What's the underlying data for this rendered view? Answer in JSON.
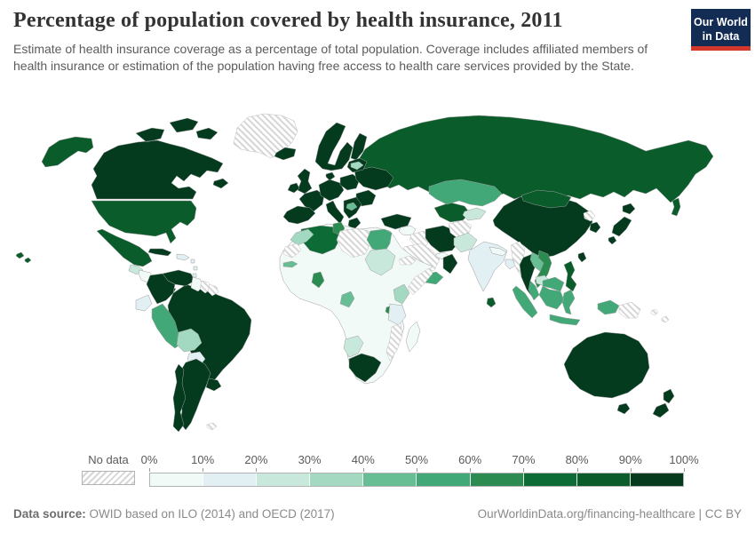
{
  "header": {
    "title": "Percentage of population covered by health insurance, 2011",
    "subtitle": "Estimate of health insurance coverage as a percentage of total population. Coverage includes affiliated members of health insurance or estimation of the population having free access to health care services provided by the State.",
    "logo": {
      "line1": "Our World",
      "line2": "in Data",
      "bg_color": "#132c54",
      "bar_color": "#d4372c"
    }
  },
  "footer": {
    "source_label": "Data source:",
    "source_text": " OWID based on ILO (2014) and OECD (2017)",
    "link_text": "OurWorldinData.org/financing-healthcare | CC BY"
  },
  "chart_data": {
    "type": "heatmap",
    "subtype": "world-choropleth-map",
    "title": "Percentage of population covered by health insurance",
    "year": 2011,
    "unit": "% of total population",
    "legend_position": "bottom",
    "color_scale": {
      "no_data_label": "No data",
      "no_data_pattern": "diagonal-hatch",
      "tick_labels": [
        "0%",
        "10%",
        "20%",
        "30%",
        "40%",
        "50%",
        "60%",
        "70%",
        "80%",
        "90%",
        "100%"
      ],
      "bin_colors": [
        "#f2faf7",
        "#e2eff3",
        "#c9e8dc",
        "#a4d9c1",
        "#67bd94",
        "#43a877",
        "#2b8b50",
        "#0d6b35",
        "#0a5c2b",
        "#043a1d"
      ]
    },
    "regions": {
      "canada": {
        "label": "Canada",
        "value": "90-100%",
        "fill": "#043a1d"
      },
      "alaska": {
        "label": "United States (Alaska)",
        "value": "80-90%",
        "fill": "#0a5c2b"
      },
      "hawaii": {
        "label": "United States (Hawaii)",
        "value": "80-90%",
        "fill": "#0a5c2b"
      },
      "usa": {
        "label": "United States",
        "value": "80-90%",
        "fill": "#0a5c2b"
      },
      "mexico": {
        "label": "Mexico",
        "value": "80-90%",
        "fill": "#0a5c2b"
      },
      "greenland": {
        "label": "Greenland",
        "value": "No data",
        "no_data": true
      },
      "iceland": {
        "label": "Iceland",
        "value": "90-100%",
        "fill": "#043a1d"
      },
      "guatemala": {
        "label": "Guatemala",
        "value": "20-30%",
        "fill": "#c9e8dc"
      },
      "honduras-nicaragua": {
        "label": "Honduras / Nicaragua",
        "value": "0-10%",
        "fill": "#f2faf7"
      },
      "costa-rica": {
        "label": "Costa Rica",
        "value": "50-60%",
        "fill": "#43a877"
      },
      "panama": {
        "label": "Panama",
        "value": "80-90%",
        "fill": "#0a5c2b"
      },
      "cuba": {
        "label": "Cuba",
        "value": "90-100%",
        "fill": "#043a1d"
      },
      "hispaniola": {
        "label": "Hispaniola",
        "value": "10-20%",
        "fill": "#e2eff3"
      },
      "lesser-antilles": {
        "label": "Lesser Antilles",
        "value": "10-20%",
        "fill": "#e2eff3"
      },
      "venezuela": {
        "label": "Venezuela",
        "value": "90-100%",
        "fill": "#043a1d"
      },
      "colombia": {
        "label": "Colombia",
        "value": "90-100%",
        "fill": "#043a1d"
      },
      "guyana": {
        "label": "Guyana",
        "value": "0-10%",
        "fill": "#f2faf7"
      },
      "suriname": {
        "label": "Suriname",
        "value": "No data",
        "no_data": true
      },
      "french-guiana": {
        "label": "French Guiana",
        "value": "No data",
        "no_data": true
      },
      "ecuador": {
        "label": "Ecuador",
        "value": "10-20%",
        "fill": "#e2eff3"
      },
      "peru": {
        "label": "Peru",
        "value": "50-60%",
        "fill": "#43a877"
      },
      "bolivia": {
        "label": "Bolivia",
        "value": "30-40%",
        "fill": "#a4d9c1"
      },
      "paraguay": {
        "label": "Paraguay",
        "value": "10-20%",
        "fill": "#e2eff3"
      },
      "brazil": {
        "label": "Brazil",
        "value": "90-100%",
        "fill": "#043a1d"
      },
      "uruguay": {
        "label": "Uruguay",
        "value": "90-100%",
        "fill": "#043a1d"
      },
      "argentina": {
        "label": "Argentina",
        "value": "90-100%",
        "fill": "#043a1d"
      },
      "chile": {
        "label": "Chile",
        "value": "90-100%",
        "fill": "#043a1d"
      },
      "falklands": {
        "label": "Falkland Islands",
        "value": "No data",
        "no_data": true
      },
      "scandinavia": {
        "label": "Norway / Sweden",
        "value": "90-100%",
        "fill": "#043a1d"
      },
      "finland": {
        "label": "Finland",
        "value": "90-100%",
        "fill": "#043a1d"
      },
      "denmark": {
        "label": "Denmark",
        "value": "90-100%",
        "fill": "#043a1d"
      },
      "uk": {
        "label": "United Kingdom",
        "value": "90-100%",
        "fill": "#043a1d"
      },
      "ireland": {
        "label": "Ireland",
        "value": "90-100%",
        "fill": "#043a1d"
      },
      "iberia": {
        "label": "Spain / Portugal",
        "value": "90-100%",
        "fill": "#043a1d"
      },
      "france": {
        "label": "France",
        "value": "90-100%",
        "fill": "#043a1d"
      },
      "central-europe": {
        "label": "Germany / Central Europe",
        "value": "90-100%",
        "fill": "#043a1d"
      },
      "italy": {
        "label": "Italy",
        "value": "90-100%",
        "fill": "#043a1d"
      },
      "poland": {
        "label": "Poland",
        "value": "90-100%",
        "fill": "#043a1d"
      },
      "balkans": {
        "label": "Balkans",
        "value": "90-100%",
        "fill": "#043a1d"
      },
      "bosnia": {
        "label": "Bosnia and Herzegovina",
        "value": "40-50%",
        "fill": "#67bd94"
      },
      "greece": {
        "label": "Greece",
        "value": "90-100%",
        "fill": "#043a1d"
      },
      "romania-bulgaria": {
        "label": "Romania / Bulgaria",
        "value": "90-100%",
        "fill": "#043a1d"
      },
      "ukraine-belarus": {
        "label": "Ukraine / Belarus",
        "value": "90-100%",
        "fill": "#043a1d"
      },
      "baltics": {
        "label": "Baltic states",
        "value": "90-100%",
        "fill": "#043a1d"
      },
      "latvia": {
        "label": "Latvia",
        "value": "30-40%",
        "fill": "#a4d9c1"
      },
      "russia": {
        "label": "Russia",
        "value": "80-90%",
        "fill": "#0a5c2b"
      },
      "turkey": {
        "label": "Turkey",
        "value": "90-100%",
        "fill": "#043a1d"
      },
      "syria": {
        "label": "Syria",
        "value": "0-10%",
        "fill": "#f2faf7"
      },
      "iraq": {
        "label": "Iraq",
        "value": "No data",
        "no_data": true
      },
      "iran": {
        "label": "Iran",
        "value": "90-100%",
        "fill": "#043a1d"
      },
      "saudi-arabia": {
        "label": "Saudi Arabia",
        "value": "No data",
        "no_data": true
      },
      "yemen": {
        "label": "Yemen",
        "value": "50-60%",
        "fill": "#43a877"
      },
      "oman": {
        "label": "Oman",
        "value": "90-100%",
        "fill": "#043a1d"
      },
      "uae": {
        "label": "United Arab Emirates",
        "value": "0-10%",
        "fill": "#f2faf7"
      },
      "afghanistan": {
        "label": "Afghanistan",
        "value": "No data",
        "no_data": true
      },
      "pakistan": {
        "label": "Pakistan",
        "value": "20-30%",
        "fill": "#c9e8dc"
      },
      "central-asia": {
        "label": "Uzbekistan / Turkmenistan",
        "value": "80-90%",
        "fill": "#0a5c2b"
      },
      "kyrgyzstan": {
        "label": "Kyrgyzstan / Tajikistan",
        "value": "20-30%",
        "fill": "#c9e8dc"
      },
      "kazakhstan": {
        "label": "Kazakhstan",
        "value": "50-60%",
        "fill": "#43a877"
      },
      "africa-base": {
        "label": "Sub-Saharan Africa (most countries)",
        "value": "0-10%",
        "fill": "#f2faf7"
      },
      "algeria": {
        "label": "Algeria",
        "value": "70-80%",
        "fill": "#0d6b35"
      },
      "morocco": {
        "label": "Morocco",
        "value": "30-40%",
        "fill": "#a4d9c1"
      },
      "western-sahara": {
        "label": "Western Sahara",
        "value": "No data",
        "no_data": true
      },
      "tunisia": {
        "label": "Tunisia",
        "value": "60-70%",
        "fill": "#2b8b50"
      },
      "libya": {
        "label": "Libya",
        "value": "No data",
        "no_data": true
      },
      "egypt": {
        "label": "Egypt",
        "value": "50-60%",
        "fill": "#43a877"
      },
      "sudan": {
        "label": "Sudan",
        "value": "20-30%",
        "fill": "#c9e8dc"
      },
      "senegal": {
        "label": "Senegal",
        "value": "40-50%",
        "fill": "#67bd94"
      },
      "ghana": {
        "label": "Ghana",
        "value": "60-70%",
        "fill": "#2b8b50"
      },
      "gabon": {
        "label": "Gabon",
        "value": "40-50%",
        "fill": "#67bd94"
      },
      "somalia": {
        "label": "Somalia",
        "value": "No data",
        "no_data": true
      },
      "eritrea": {
        "label": "Eritrea / Djibouti",
        "value": "No data",
        "no_data": true
      },
      "kenya": {
        "label": "Kenya",
        "value": "30-40%",
        "fill": "#a4d9c1"
      },
      "tanzania": {
        "label": "Tanzania",
        "value": "10-20%",
        "fill": "#e2eff3"
      },
      "rwanda": {
        "label": "Rwanda / Burundi",
        "value": "60-70%",
        "fill": "#2b8b50"
      },
      "mozambique": {
        "label": "Mozambique",
        "value": "No data",
        "no_data": true
      },
      "namibia": {
        "label": "Namibia",
        "value": "20-30%",
        "fill": "#c9e8dc"
      },
      "south-africa": {
        "label": "South Africa",
        "value": "90-100%",
        "fill": "#043a1d"
      },
      "madagascar": {
        "label": "Madagascar",
        "value": "0-10%",
        "fill": "#f2faf7"
      },
      "china": {
        "label": "China",
        "value": "90-100%",
        "fill": "#043a1d"
      },
      "mongolia": {
        "label": "Mongolia",
        "value": "80-90%",
        "fill": "#0a5c2b"
      },
      "india": {
        "label": "India",
        "value": "10-20%",
        "fill": "#e2eff3"
      },
      "nepal": {
        "label": "Nepal",
        "value": "0-10%",
        "fill": "#f2faf7"
      },
      "bangladesh": {
        "label": "Bangladesh",
        "value": "10-20%",
        "fill": "#e2eff3"
      },
      "sri-lanka": {
        "label": "Sri Lanka",
        "value": "80-90%",
        "fill": "#0a5c2b"
      },
      "myanmar": {
        "label": "Myanmar",
        "value": "No data",
        "no_data": true
      },
      "thailand": {
        "label": "Thailand",
        "value": "90-100%",
        "fill": "#043a1d"
      },
      "laos": {
        "label": "Laos",
        "value": "40-50%",
        "fill": "#67bd94"
      },
      "vietnam": {
        "label": "Vietnam",
        "value": "60-70%",
        "fill": "#2b8b50"
      },
      "cambodia": {
        "label": "Cambodia",
        "value": "20-30%",
        "fill": "#c9e8dc"
      },
      "malaysia": {
        "label": "Malaysia",
        "value": "50-60%",
        "fill": "#43a877"
      },
      "indonesia": {
        "label": "Indonesia",
        "value": "50-60%",
        "fill": "#43a877"
      },
      "philippines": {
        "label": "Philippines",
        "value": "80-90%",
        "fill": "#0a5c2b"
      },
      "taiwan": {
        "label": "Taiwan",
        "value": "90-100%",
        "fill": "#043a1d"
      },
      "japan": {
        "label": "Japan",
        "value": "90-100%",
        "fill": "#043a1d"
      },
      "north-korea": {
        "label": "North Korea",
        "value": "No data",
        "no_data": true
      },
      "south-korea": {
        "label": "South Korea",
        "value": "90-100%",
        "fill": "#043a1d"
      },
      "australia": {
        "label": "Australia",
        "value": "90-100%",
        "fill": "#043a1d"
      },
      "new-zealand": {
        "label": "New Zealand",
        "value": "90-100%",
        "fill": "#043a1d"
      },
      "papua-new-guinea": {
        "label": "Papua New Guinea",
        "value": "No data",
        "no_data": true
      },
      "fiji": {
        "label": "Pacific islands",
        "value": "No data",
        "no_data": true
      }
    }
  }
}
